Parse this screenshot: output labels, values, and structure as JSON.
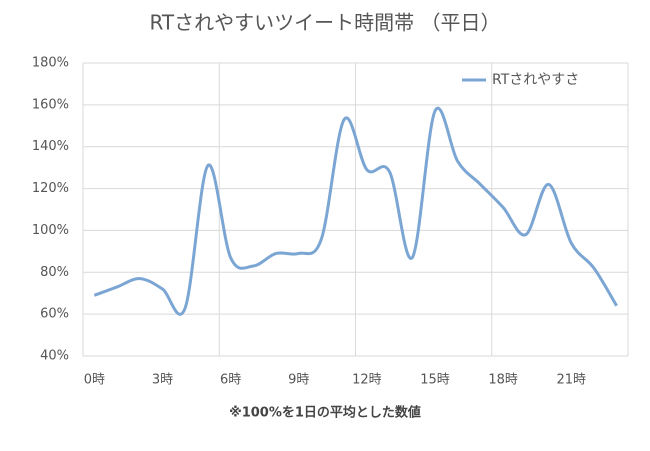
{
  "chart_data": {
    "type": "line",
    "title": "RTされやすいツイート時間帯 （平日）",
    "categories": [
      "0時",
      null,
      null,
      "3時",
      null,
      null,
      "6時",
      null,
      null,
      "9時",
      null,
      null,
      "12時",
      null,
      null,
      "15時",
      null,
      null,
      "18時",
      null,
      null,
      "21時",
      null,
      null
    ],
    "series": [
      {
        "name": "RTされやすさ",
        "color": "#7ba6d4",
        "values": [
          69,
          73,
          77,
          72,
          63,
          131,
          87,
          83,
          89,
          89,
          96,
          153,
          129,
          128,
          87,
          157,
          133,
          122,
          111,
          98,
          122,
          94,
          82,
          64
        ]
      }
    ],
    "ylim": [
      40,
      180
    ],
    "yticks": [
      {
        "value": 40,
        "label": "40%"
      },
      {
        "value": 60,
        "label": "60%"
      },
      {
        "value": 80,
        "label": "80%"
      },
      {
        "value": 100,
        "label": "100%"
      },
      {
        "value": 120,
        "label": "120%"
      },
      {
        "value": 140,
        "label": "140%"
      },
      {
        "value": 160,
        "label": "160%"
      },
      {
        "value": 180,
        "label": "180%"
      }
    ],
    "grid": true,
    "smooth": true,
    "legend": "top-right",
    "note": "※100%を1日の平均とした数値"
  }
}
